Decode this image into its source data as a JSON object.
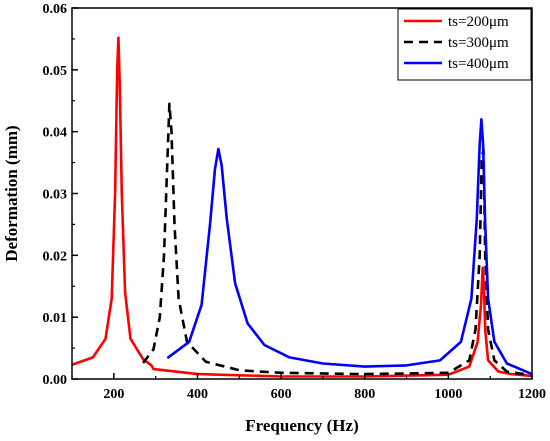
{
  "chart_data": {
    "type": "line",
    "title": "",
    "xlabel": "Frequency (Hz)",
    "ylabel": "Deformation (mm)",
    "xlim": [
      100,
      1200
    ],
    "ylim": [
      0,
      0.06
    ],
    "xticks": [
      200,
      400,
      600,
      800,
      1000,
      1200
    ],
    "xtick_labels": [
      "200",
      "400",
      "600",
      "800",
      "1000",
      "1200"
    ],
    "yticks": [
      0.0,
      0.01,
      0.02,
      0.03,
      0.04,
      0.05,
      0.06
    ],
    "ytick_labels": [
      "0.00",
      "0.01",
      "0.02",
      "0.03",
      "0.04",
      "0.05",
      "0.06"
    ],
    "grid": false,
    "legend_position": "top-right",
    "series": [
      {
        "name": "ts=200μm",
        "color": "#ff0000",
        "style": "solid",
        "x": [
          100,
          150,
          180,
          195,
          203,
          208,
          211,
          214,
          219,
          227,
          240,
          270,
          290,
          295,
          400,
          600,
          800,
          1000,
          1050,
          1070,
          1078,
          1082,
          1085,
          1088,
          1095,
          1120,
          1150,
          1200
        ],
        "y": [
          0.0023,
          0.0035,
          0.0065,
          0.013,
          0.03,
          0.05,
          0.0552,
          0.048,
          0.03,
          0.014,
          0.0065,
          0.0032,
          0.0022,
          0.0016,
          0.0008,
          0.0004,
          0.0004,
          0.0007,
          0.002,
          0.006,
          0.012,
          0.018,
          0.015,
          0.008,
          0.003,
          0.0012,
          0.0008,
          0.0005
        ]
      },
      {
        "name": "ts=300μm",
        "color": "#000000",
        "style": "dashed",
        "x": [
          270,
          295,
          310,
          320,
          328,
          333,
          338,
          345,
          355,
          375,
          420,
          500,
          600,
          800,
          1000,
          1050,
          1065,
          1075,
          1080,
          1084,
          1088,
          1095,
          1110,
          1140,
          1200
        ],
        "y": [
          0.0026,
          0.0048,
          0.01,
          0.02,
          0.035,
          0.0445,
          0.04,
          0.025,
          0.013,
          0.006,
          0.0028,
          0.0014,
          0.001,
          0.0008,
          0.001,
          0.003,
          0.008,
          0.02,
          0.036,
          0.037,
          0.02,
          0.008,
          0.003,
          0.0012,
          0.0006
        ]
      },
      {
        "name": "ts=400μm",
        "color": "#0000ff",
        "style": "solid",
        "x": [
          330,
          380,
          410,
          430,
          442,
          450,
          458,
          470,
          490,
          520,
          560,
          620,
          700,
          800,
          900,
          980,
          1030,
          1055,
          1068,
          1075,
          1079,
          1083,
          1088,
          1095,
          1110,
          1140,
          1200
        ],
        "y": [
          0.0035,
          0.006,
          0.012,
          0.025,
          0.034,
          0.0372,
          0.0345,
          0.026,
          0.0155,
          0.009,
          0.0055,
          0.0035,
          0.0025,
          0.002,
          0.0022,
          0.003,
          0.006,
          0.013,
          0.026,
          0.038,
          0.042,
          0.038,
          0.025,
          0.013,
          0.006,
          0.0025,
          0.0008
        ]
      }
    ]
  }
}
